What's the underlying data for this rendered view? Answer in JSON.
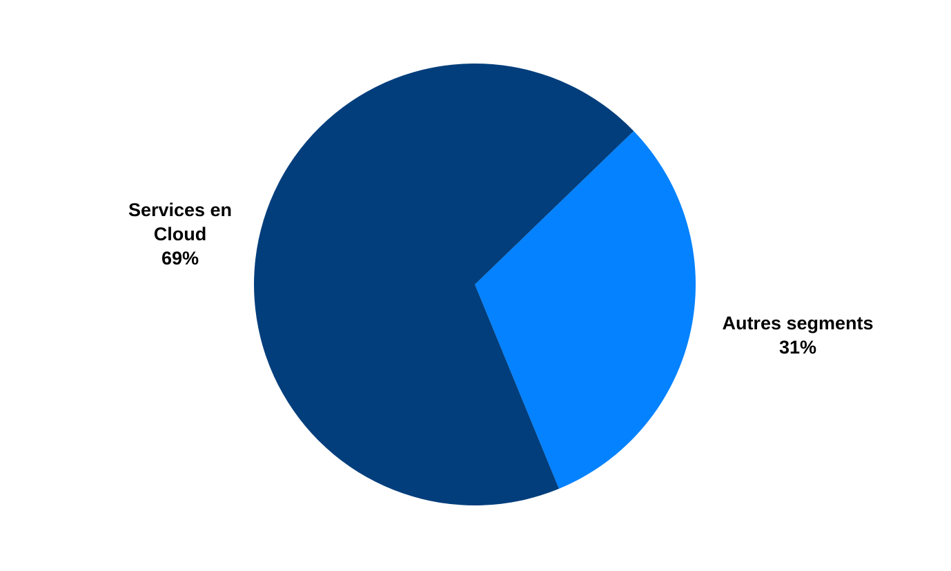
{
  "chart_data": {
    "type": "pie",
    "title": "",
    "slices": [
      {
        "name": "Autres segments",
        "label_lines": [
          "Autres segments"
        ],
        "percent_label": "31%",
        "value": 31,
        "color": "#0582FF"
      },
      {
        "name": "Services en Cloud",
        "label_lines": [
          "Services en",
          "Cloud"
        ],
        "percent_label": "69%",
        "value": 69,
        "color": "#023E7C"
      }
    ],
    "legend": "none",
    "labels_outside": true
  }
}
